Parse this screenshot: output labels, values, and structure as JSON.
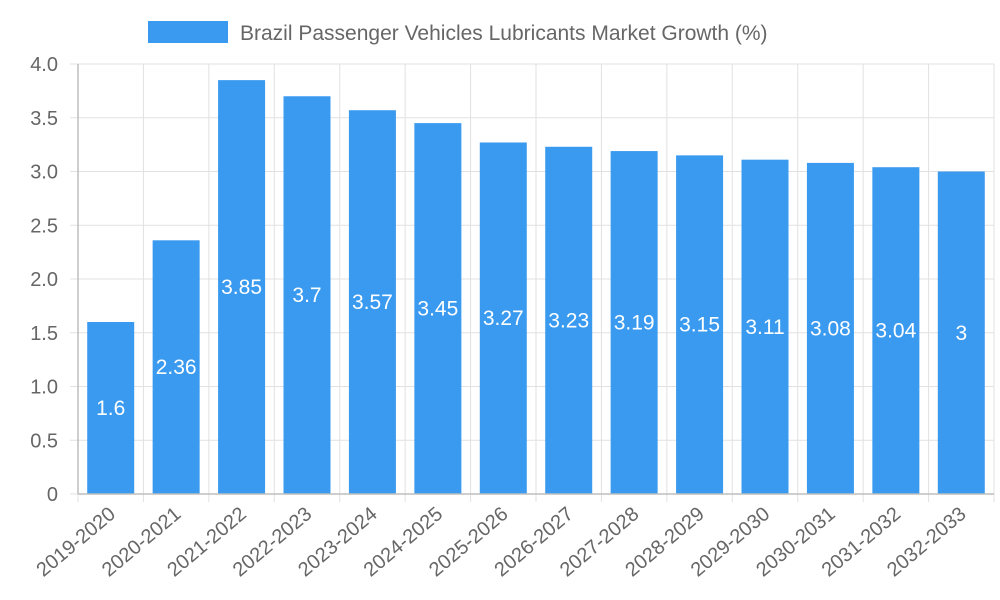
{
  "chart_data": {
    "type": "bar",
    "title": "",
    "legend": {
      "position": "top-center",
      "entries": [
        "Brazil Passenger Vehicles Lubricants Market Growth (%)"
      ]
    },
    "categories": [
      "2019-2020",
      "2020-2021",
      "2021-2022",
      "2022-2023",
      "2023-2024",
      "2024-2025",
      "2025-2026",
      "2026-2027",
      "2027-2028",
      "2028-2029",
      "2029-2030",
      "2030-2031",
      "2031-2032",
      "2032-2033"
    ],
    "series": [
      {
        "name": "Brazil Passenger Vehicles Lubricants Market Growth (%)",
        "values": [
          1.6,
          2.36,
          3.85,
          3.7,
          3.57,
          3.45,
          3.27,
          3.23,
          3.19,
          3.15,
          3.11,
          3.08,
          3.04,
          3
        ],
        "data_labels": [
          "1.6",
          "2.36",
          "3.85",
          "3.7",
          "3.57",
          "3.45",
          "3.27",
          "3.23",
          "3.19",
          "3.15",
          "3.11",
          "3.08",
          "3.04",
          "3"
        ],
        "color": "#3a9af0"
      }
    ],
    "xlabel": "",
    "ylabel": "",
    "ylim": [
      0,
      4.0
    ],
    "y_ticks": [
      "0",
      "0.5",
      "1.0",
      "1.5",
      "2.0",
      "2.5",
      "3.0",
      "3.5",
      "4.0"
    ],
    "grid": true
  }
}
